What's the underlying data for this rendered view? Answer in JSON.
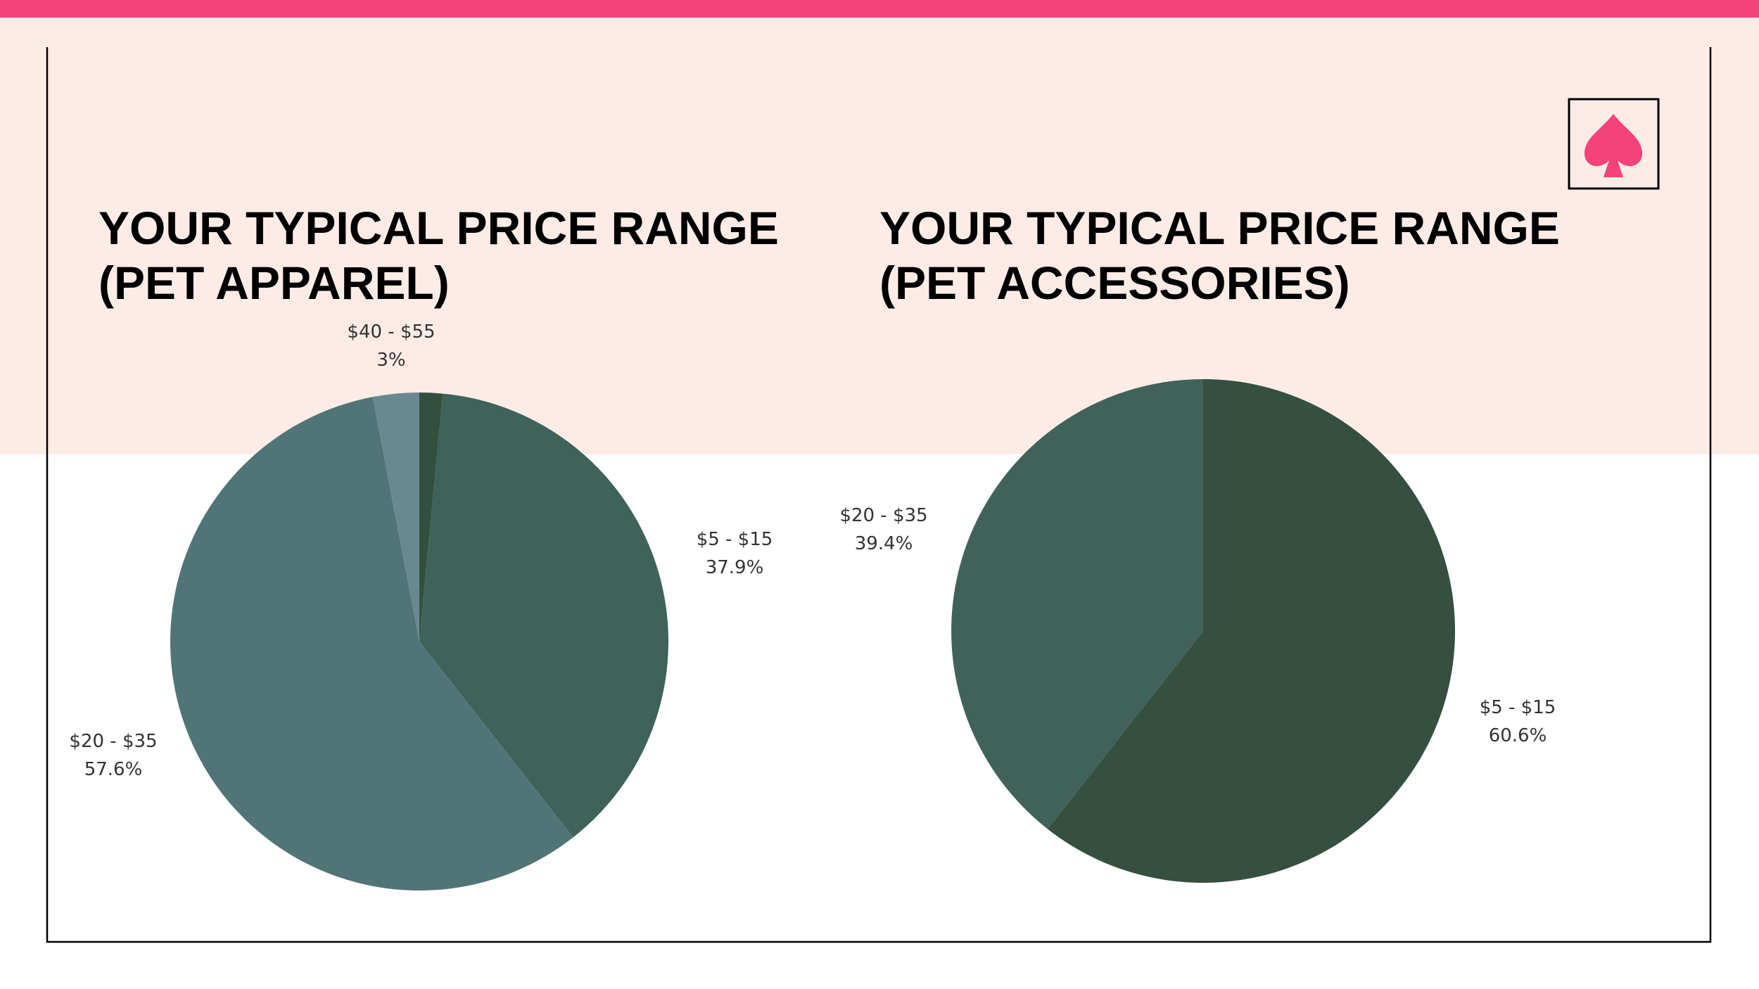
{
  "chart_data": [
    {
      "type": "pie",
      "title": "YOUR TYPICAL PRICE RANGE (PET APPAREL)",
      "categories": [
        null,
        "$5 - $15",
        "$20 - $35",
        "$40 - $55"
      ],
      "values": [
        1.5,
        37.9,
        57.6,
        3
      ],
      "value_labels": [
        null,
        "37.9%",
        "57.6%",
        "3%"
      ],
      "colors": [
        "#33503f",
        "#3f625b",
        "#517577",
        "#6a8890"
      ]
    },
    {
      "type": "pie",
      "title": "YOUR TYPICAL PRICE RANGE (PET ACCESSORIES)",
      "categories": [
        "$5 - $15",
        "$20 - $35"
      ],
      "values": [
        60.6,
        39.4
      ],
      "value_labels": [
        "60.6%",
        "39.4%"
      ],
      "colors": [
        "#354f40",
        "#41625a"
      ]
    }
  ]
}
